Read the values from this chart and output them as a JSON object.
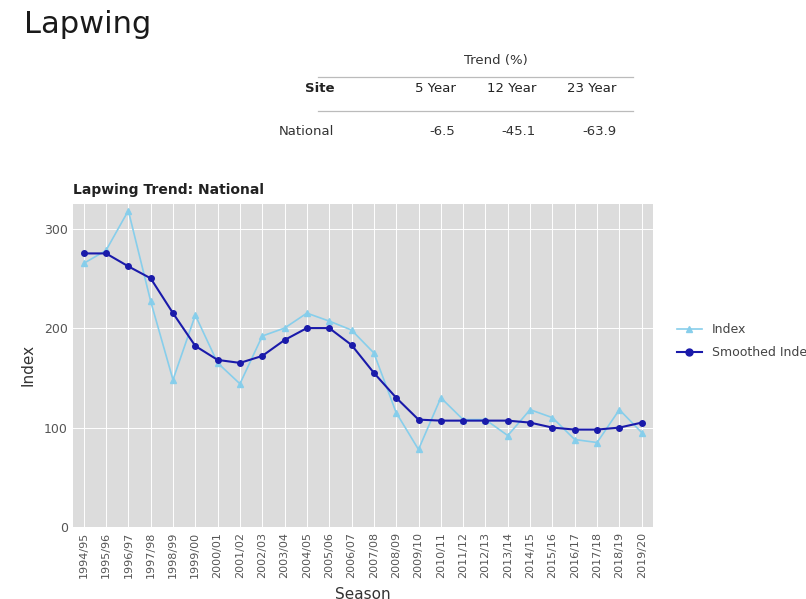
{
  "title": "Lapwing",
  "chart_title": "Lapwing Trend: National",
  "table_header": "Trend (%)",
  "table_cols": [
    "Site",
    "5 Year",
    "12 Year",
    "23 Year"
  ],
  "table_rows": [
    [
      "National",
      "-6.5",
      "-45.1",
      "-63.9"
    ]
  ],
  "seasons": [
    "1994/95",
    "1995/96",
    "1996/97",
    "1997/98",
    "1998/99",
    "1999/00",
    "2000/01",
    "2001/02",
    "2002/03",
    "2003/04",
    "2004/05",
    "2005/06",
    "2006/07",
    "2007/08",
    "2008/09",
    "2009/10",
    "2010/11",
    "2011/12",
    "2012/13",
    "2013/14",
    "2014/15",
    "2015/16",
    "2016/17",
    "2017/18",
    "2018/19",
    "2019/20"
  ],
  "index_values": [
    265,
    278,
    318,
    227,
    148,
    213,
    165,
    144,
    192,
    200,
    215,
    207,
    198,
    175,
    115,
    78,
    130,
    108,
    108,
    92,
    118,
    110,
    88,
    85,
    118,
    95
  ],
  "smoothed_values": [
    275,
    275,
    262,
    250,
    215,
    182,
    168,
    165,
    172,
    188,
    200,
    200,
    183,
    155,
    130,
    108,
    107,
    107,
    107,
    107,
    105,
    100,
    98,
    98,
    100,
    105
  ],
  "index_color": "#87CEEB",
  "smoothed_color": "#1a1aaa",
  "plot_bg_color": "#dcdcdc",
  "xlabel": "Season",
  "ylabel": "Index",
  "ylim": [
    0,
    325
  ],
  "yticks": [
    0,
    100,
    200,
    300
  ],
  "fig_bg_color": "#ffffff",
  "title_fontsize": 22,
  "axis_label_fontsize": 10,
  "tick_fontsize": 8
}
